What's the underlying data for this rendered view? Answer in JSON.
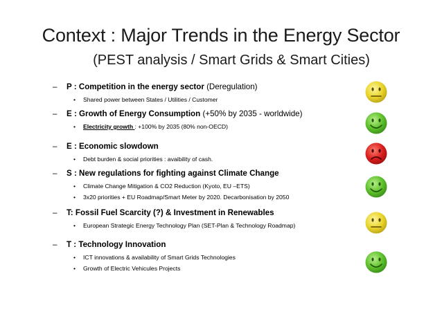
{
  "title": "Context : Major Trends in the Energy Sector",
  "subtitle": "(PEST analysis / Smart Grids & Smart Cities)",
  "items": [
    {
      "dash": "–",
      "heading_bold": "P : Competition in the energy sector",
      "heading_rest": " (Deregulation)",
      "subs": [
        {
          "text": "Shared power between States / Utilities / Customer"
        }
      ],
      "status": "neutral"
    },
    {
      "dash": "–",
      "heading_bold": "E : Growth of Energy Consumption",
      "heading_rest": " (+50% by 2035 - worldwide)",
      "subs": [
        {
          "prefix": "Electricity growth ",
          "text": ": +100% by 2035 (80% non-OECD)"
        }
      ],
      "status": "positive"
    },
    {
      "dash": "–",
      "heading_bold": "E : Economic slowdown",
      "heading_rest": "",
      "subs": [
        {
          "text": "Debt burden & social priorities : avaibility of cash."
        }
      ],
      "status": "negative"
    },
    {
      "dash": "–",
      "heading_bold": "S : New regulations for fighting against Climate Change",
      "heading_rest": "",
      "subs": [
        {
          "text": "Climate Change Mitigation & CO2 Reduction (Kyoto, EU –ETS)"
        },
        {
          "text": "3x20 priorities  + EU Roadmap/Smart Meter by 2020. Decarbonisation by 2050"
        }
      ],
      "status": "positive"
    },
    {
      "dash": "–",
      "heading_bold": "T: Fossil Fuel Scarcity (?) & Investment in Renewables",
      "heading_rest": "",
      "subs": [
        {
          "text": "European Strategic Energy Technology Plan (SET-Plan & Technology Roadmap)"
        }
      ],
      "status": "neutral"
    },
    {
      "dash": "–",
      "heading_bold": "T : Technology Innovation",
      "heading_rest": "",
      "subs": [
        {
          "text": "ICT innovations & availability of Smart Grids Technologies"
        },
        {
          "text": "Growth of Electric Vehicules Projects"
        }
      ],
      "status": "positive"
    }
  ],
  "bullet": "•",
  "colors": {
    "positive": "#5cbf2a",
    "neutral": "#e8d32a",
    "negative": "#d81e1e"
  }
}
